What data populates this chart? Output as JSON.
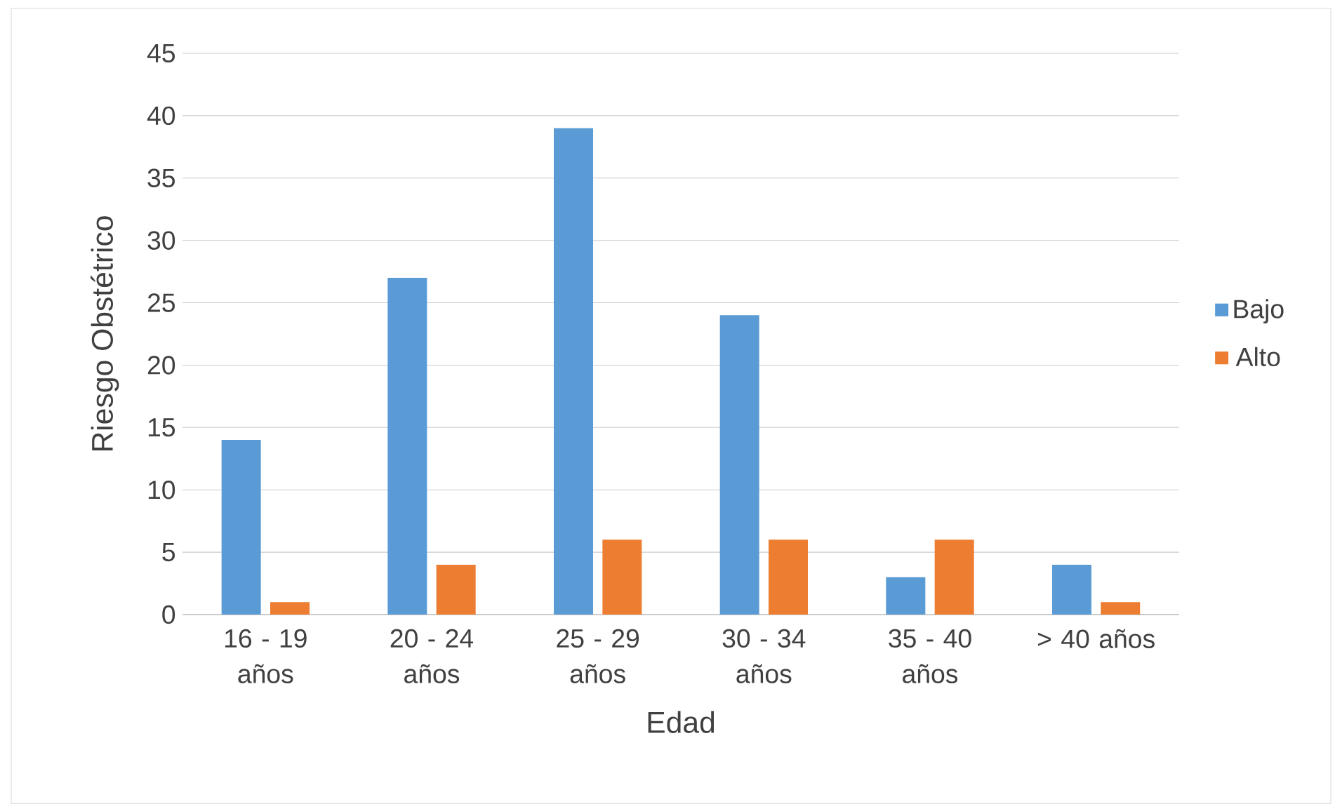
{
  "chart_data": {
    "type": "bar",
    "xlabel": "Edad",
    "ylabel": "Riesgo Obstétrico",
    "categories": [
      "16 - 19 años",
      "20 - 24 años",
      "25 - 29 años",
      "30 - 34 años",
      "35 - 40 años",
      "> 40 años"
    ],
    "series": [
      {
        "name": "Bajo",
        "color": "#5b9bd5",
        "values": [
          14,
          27,
          39,
          24,
          3,
          4
        ]
      },
      {
        "name": "Alto",
        "color": "#ed7d31",
        "values": [
          1,
          4,
          6,
          6,
          6,
          1
        ]
      }
    ],
    "ylim": [
      0,
      45
    ],
    "yticks": [
      0,
      5,
      10,
      15,
      20,
      25,
      30,
      35,
      40,
      45
    ],
    "grid": "y",
    "legend": "right"
  }
}
